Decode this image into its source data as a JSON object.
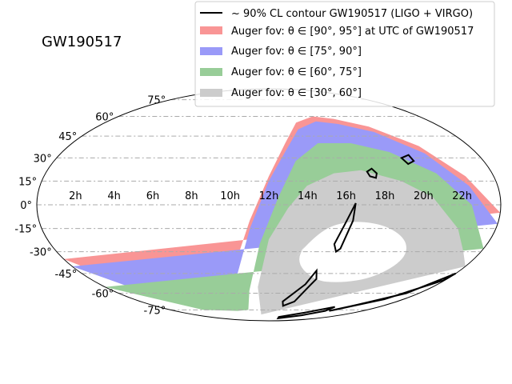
{
  "chart_data": {
    "type": "area",
    "projection": "mollweide",
    "title": "GW190517",
    "ra_tick_labels": [
      "2h",
      "4h",
      "6h",
      "8h",
      "10h",
      "12h",
      "14h",
      "16h",
      "18h",
      "20h",
      "22h"
    ],
    "dec_tick_labels_left": [
      "-75°",
      "-60°",
      "-45°",
      "-30°",
      "-15°",
      "0°",
      "15°",
      "30°",
      "45°",
      "60°",
      "75°"
    ],
    "dec_ticks": [
      -75,
      -60,
      -45,
      -30,
      -15,
      0,
      15,
      30,
      45,
      60,
      75
    ],
    "grid": true,
    "legend_position": "top-right",
    "series": [
      {
        "key": "contour",
        "name": "~ 90% CL contour GW190517 (LIGO + VIRGO)",
        "color": "#000000",
        "kind": "line"
      },
      {
        "key": "band_90_95",
        "name": "Auger fov: θ ∈ [90°, 95°] at UTC of GW190517",
        "color": "#f99595",
        "kind": "fill"
      },
      {
        "key": "band_75_90",
        "name": "Auger fov: θ ∈ [75°, 90°]",
        "color": "#9a9af8",
        "kind": "fill"
      },
      {
        "key": "band_60_75",
        "name": "Auger fov: θ ∈ [60°, 75°]",
        "color": "#98cd98",
        "kind": "fill"
      },
      {
        "key": "band_30_60",
        "name": "Auger fov: θ ∈ [30°, 60°]",
        "color": "#cccccc",
        "kind": "fill"
      }
    ],
    "legend_texts": [
      "~ 90% CL contour GW190517 (LIGO + VIRGO)",
      "Auger fov: θ ∈ [90°, 95°] at UTC of GW190517",
      "Auger fov: θ ∈ [75°, 90°]",
      "Auger fov: θ ∈ [60°, 75°]",
      "Auger fov: θ ∈ [30°, 60°]"
    ],
    "region_boundaries_ra_hours": {
      "note_units": "each boundary lists [ra_hours, dec_degrees] samples",
      "outer_95": [
        [
          0,
          -35
        ],
        [
          2,
          -53
        ],
        [
          4,
          -62
        ],
        [
          6,
          -66
        ],
        [
          8,
          -66
        ],
        [
          9,
          -60
        ],
        [
          10,
          -38
        ],
        [
          11,
          -10
        ],
        [
          12,
          18
        ],
        [
          13,
          40
        ],
        [
          14,
          55
        ],
        [
          15.5,
          60
        ],
        [
          17,
          58
        ],
        [
          19,
          52
        ],
        [
          21,
          38
        ],
        [
          22.5,
          18
        ],
        [
          24,
          -5
        ]
      ],
      "edge_90": [
        [
          0,
          -40
        ],
        [
          2,
          -57
        ],
        [
          4,
          -65
        ],
        [
          6,
          -70
        ],
        [
          8,
          -69
        ],
        [
          9,
          -65
        ],
        [
          10,
          -45
        ],
        [
          11,
          -15
        ],
        [
          12,
          15
        ],
        [
          13,
          35
        ],
        [
          14,
          50
        ],
        [
          15.5,
          56
        ],
        [
          17,
          54
        ],
        [
          19,
          48
        ],
        [
          21,
          33
        ],
        [
          22.5,
          12
        ],
        [
          24,
          -12
        ]
      ],
      "edge_75": [
        [
          0,
          -55
        ],
        [
          4,
          -75
        ],
        [
          8,
          -76
        ],
        [
          9.5,
          -75
        ],
        [
          10.5,
          -58
        ],
        [
          11.5,
          -25
        ],
        [
          12.5,
          5
        ],
        [
          13.5,
          28
        ],
        [
          15,
          40
        ],
        [
          17,
          40
        ],
        [
          19,
          34
        ],
        [
          21,
          20
        ],
        [
          22.5,
          0
        ],
        [
          24,
          -28
        ]
      ],
      "edge_60": [
        [
          10.8,
          -80
        ],
        [
          11.2,
          -55
        ],
        [
          12,
          -22
        ],
        [
          13,
          -2
        ],
        [
          14,
          12
        ],
        [
          15.5,
          20
        ],
        [
          17,
          22
        ],
        [
          19,
          15
        ],
        [
          20.5,
          5
        ],
        [
          22,
          -15
        ],
        [
          23,
          -30
        ]
      ],
      "hole_30": [
        [
          13.5,
          -35
        ],
        [
          14.5,
          -18
        ],
        [
          16,
          -10
        ],
        [
          18,
          -12
        ],
        [
          19.5,
          -22
        ],
        [
          20,
          -35
        ],
        [
          19,
          -48
        ],
        [
          17,
          -52
        ],
        [
          15,
          -50
        ]
      ]
    },
    "contour_regions": [
      [
        [
          17.6,
          23
        ],
        [
          17.8,
          20
        ],
        [
          17.7,
          17
        ],
        [
          17.4,
          18
        ],
        [
          17.3,
          21
        ],
        [
          17.6,
          23
        ]
      ],
      [
        [
          20,
          32
        ],
        [
          20.1,
          28
        ],
        [
          19.7,
          26
        ],
        [
          19.5,
          30
        ],
        [
          20,
          32
        ]
      ],
      [
        [
          16.5,
          1
        ],
        [
          16.4,
          -10
        ],
        [
          16,
          -28
        ],
        [
          15.8,
          -30
        ],
        [
          15.6,
          -25
        ],
        [
          16,
          -12
        ],
        [
          16.5,
          1
        ]
      ],
      [
        [
          15,
          -43
        ],
        [
          14.6,
          -53
        ],
        [
          13.3,
          -67
        ],
        [
          13.5,
          -71
        ],
        [
          14.4,
          -67
        ],
        [
          15,
          -53
        ],
        [
          15.2,
          -49
        ],
        [
          15,
          -43
        ]
      ],
      [
        [
          19.2,
          -72
        ],
        [
          17,
          -78
        ],
        [
          14,
          -83
        ],
        [
          14.3,
          -85
        ],
        [
          17.6,
          -81
        ],
        [
          19.2,
          -76
        ],
        [
          19.2,
          -72
        ]
      ],
      [
        [
          24,
          -45
        ],
        [
          23,
          -60
        ],
        [
          21,
          -70
        ],
        [
          19.7,
          -76
        ],
        [
          20,
          -75
        ],
        [
          22.3,
          -65
        ],
        [
          23.9,
          -50
        ],
        [
          24,
          -45
        ]
      ]
    ]
  }
}
